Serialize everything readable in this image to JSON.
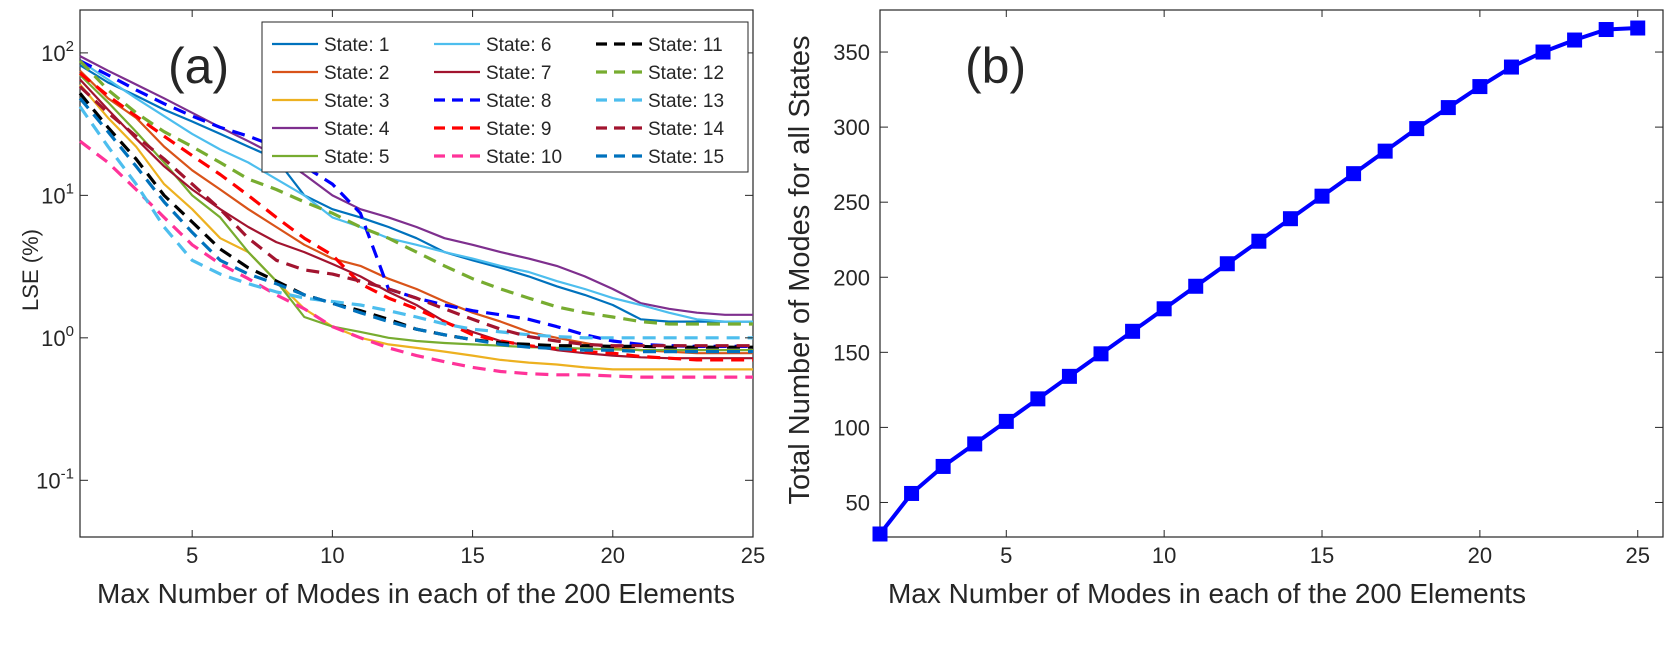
{
  "chart_data": [
    {
      "type": "line",
      "panel_label": "(a)",
      "xlabel": "Max Number of Modes in each of the 200 Elements",
      "ylabel": "LSE (%)",
      "xlim": [
        1,
        25
      ],
      "ylim": [
        0.04,
        200
      ],
      "yscale": "log",
      "xticks": [
        "5",
        "10",
        "15",
        "20",
        "25"
      ],
      "yticks": [
        {
          "base": "10",
          "exp": "-1",
          "value": 0.1
        },
        {
          "base": "10",
          "exp": "0",
          "value": 1
        },
        {
          "base": "10",
          "exp": "1",
          "value": 10
        },
        {
          "base": "10",
          "exp": "2",
          "value": 100
        }
      ],
      "grid": false,
      "legend_position": "top-right",
      "x": [
        1,
        2,
        3,
        4,
        5,
        6,
        7,
        8,
        9,
        10,
        11,
        12,
        13,
        14,
        15,
        16,
        17,
        18,
        19,
        20,
        21,
        22,
        23,
        24,
        25
      ],
      "series": [
        {
          "name": "State: 1",
          "color": "#0072BD",
          "dash": "solid",
          "values": [
            82,
            62,
            50,
            40,
            33,
            27,
            22,
            18,
            10,
            8,
            7,
            6,
            5,
            4,
            3.5,
            3.1,
            2.7,
            2.3,
            2.0,
            1.7,
            1.35,
            1.3,
            1.3,
            1.3,
            1.3
          ]
        },
        {
          "name": "State: 2",
          "color": "#D95319",
          "dash": "solid",
          "values": [
            75,
            48,
            35,
            22,
            15,
            11,
            8,
            6,
            4.5,
            3.6,
            3.2,
            2.6,
            2.2,
            1.8,
            1.5,
            1.3,
            1.1,
            1.0,
            0.92,
            0.85,
            0.82,
            0.8,
            0.78,
            0.78,
            0.78
          ]
        },
        {
          "name": "State: 3",
          "color": "#EDB120",
          "dash": "solid",
          "values": [
            60,
            35,
            22,
            12,
            8,
            5,
            4,
            2.5,
            1.6,
            1.2,
            1.0,
            0.9,
            0.85,
            0.8,
            0.75,
            0.7,
            0.67,
            0.65,
            0.62,
            0.6,
            0.6,
            0.6,
            0.6,
            0.6,
            0.6
          ]
        },
        {
          "name": "State: 4",
          "color": "#7E2F8E",
          "dash": "solid",
          "values": [
            95,
            75,
            60,
            48,
            38,
            30,
            24,
            19,
            14,
            10,
            8,
            7,
            6,
            5,
            4.5,
            4,
            3.6,
            3.2,
            2.7,
            2.2,
            1.75,
            1.6,
            1.5,
            1.45,
            1.45
          ]
        },
        {
          "name": "State: 5",
          "color": "#77AC30",
          "dash": "solid",
          "values": [
            70,
            45,
            28,
            17,
            10,
            7,
            4,
            2.5,
            1.4,
            1.2,
            1.1,
            1.0,
            0.95,
            0.92,
            0.9,
            0.88,
            0.86,
            0.85,
            0.84,
            0.83,
            0.82,
            0.82,
            0.82,
            0.82,
            0.82
          ]
        },
        {
          "name": "State: 6",
          "color": "#4DBEEE",
          "dash": "solid",
          "values": [
            88,
            65,
            48,
            36,
            27,
            21,
            17,
            13,
            10,
            7,
            6,
            5,
            4.5,
            4,
            3.6,
            3.2,
            2.9,
            2.5,
            2.2,
            1.9,
            1.7,
            1.5,
            1.35,
            1.3,
            1.3
          ]
        },
        {
          "name": "State: 7",
          "color": "#A2142F",
          "dash": "solid",
          "values": [
            65,
            40,
            25,
            16,
            11,
            8,
            6,
            4.7,
            4,
            3.3,
            2.7,
            2.1,
            1.7,
            1.3,
            1.1,
            0.95,
            0.88,
            0.82,
            0.78,
            0.75,
            0.73,
            0.72,
            0.72,
            0.72,
            0.72
          ]
        },
        {
          "name": "State: 8",
          "color": "#0000FF",
          "dash": "dashed",
          "values": [
            88,
            70,
            55,
            44,
            36,
            30,
            26,
            22,
            16,
            12,
            7.5,
            2.2,
            1.9,
            1.7,
            1.55,
            1.45,
            1.35,
            1.2,
            1.05,
            0.95,
            0.9,
            0.88,
            0.87,
            0.87,
            0.87
          ]
        },
        {
          "name": "State: 9",
          "color": "#FF0000",
          "dash": "dashed",
          "values": [
            72,
            50,
            36,
            26,
            19,
            14,
            10,
            7,
            5,
            3.8,
            2.4,
            1.9,
            1.6,
            1.3,
            1.05,
            0.95,
            0.88,
            0.84,
            0.8,
            0.78,
            0.74,
            0.72,
            0.7,
            0.7,
            0.7
          ]
        },
        {
          "name": "State: 10",
          "color": "#FF3399",
          "dash": "dashed",
          "values": [
            24,
            17,
            11,
            7,
            4.5,
            3.3,
            2.6,
            2.0,
            1.6,
            1.2,
            1.0,
            0.85,
            0.75,
            0.68,
            0.62,
            0.58,
            0.56,
            0.55,
            0.55,
            0.54,
            0.53,
            0.53,
            0.53,
            0.53,
            0.53
          ]
        },
        {
          "name": "State: 11",
          "color": "#000000",
          "dash": "dashed",
          "values": [
            52,
            30,
            18,
            10,
            6.5,
            4.2,
            3.1,
            2.5,
            2.0,
            1.75,
            1.55,
            1.35,
            1.15,
            1.05,
            0.97,
            0.92,
            0.9,
            0.88,
            0.88,
            0.87,
            0.87,
            0.86,
            0.86,
            0.86,
            0.86
          ]
        },
        {
          "name": "State: 12",
          "color": "#77AC30",
          "dash": "dashed",
          "values": [
            88,
            55,
            38,
            28,
            22,
            17,
            13,
            11,
            9,
            7.5,
            6,
            5,
            4,
            3.2,
            2.6,
            2.2,
            1.9,
            1.65,
            1.5,
            1.4,
            1.3,
            1.25,
            1.25,
            1.25,
            1.25
          ]
        },
        {
          "name": "State: 13",
          "color": "#4DBEEE",
          "dash": "dashed",
          "values": [
            42,
            22,
            12,
            6,
            3.5,
            2.8,
            2.4,
            2.1,
            1.9,
            1.8,
            1.7,
            1.55,
            1.4,
            1.25,
            1.15,
            1.1,
            1.05,
            1.02,
            1.0,
            1.0,
            1.0,
            1.0,
            1.0,
            1.0,
            1.0
          ]
        },
        {
          "name": "State: 14",
          "color": "#A2142F",
          "dash": "dashed",
          "values": [
            58,
            38,
            26,
            18,
            12,
            8,
            5,
            3.5,
            3.0,
            2.8,
            2.5,
            2.2,
            1.9,
            1.6,
            1.35,
            1.15,
            1.02,
            0.95,
            0.9,
            0.88,
            0.88,
            0.88,
            0.88,
            0.88,
            0.88
          ]
        },
        {
          "name": "State: 15",
          "color": "#0072BD",
          "dash": "dashed",
          "values": [
            48,
            28,
            16,
            9,
            5.5,
            3.5,
            2.8,
            2.4,
            2.0,
            1.75,
            1.5,
            1.3,
            1.15,
            1.05,
            0.97,
            0.9,
            0.86,
            0.84,
            0.82,
            0.82,
            0.8,
            0.8,
            0.8,
            0.8,
            0.8
          ]
        }
      ]
    },
    {
      "type": "line",
      "panel_label": "(b)",
      "xlabel": "Max Number of Modes in each of the 200 Elements",
      "ylabel": "Total Number of Modes for all States",
      "xlim": [
        1,
        25.8
      ],
      "ylim": [
        27,
        378
      ],
      "xticks": [
        "5",
        "10",
        "15",
        "20",
        "25"
      ],
      "yticks": [
        "50",
        "100",
        "150",
        "200",
        "250",
        "300",
        "350"
      ],
      "grid": false,
      "marker": "square",
      "color": "#0000FF",
      "x": [
        1,
        2,
        3,
        4,
        5,
        6,
        7,
        8,
        9,
        10,
        11,
        12,
        13,
        14,
        15,
        16,
        17,
        18,
        19,
        20,
        21,
        22,
        23,
        24,
        25
      ],
      "series": [
        {
          "values": [
            29,
            56,
            74,
            89,
            104,
            119,
            134,
            149,
            164,
            179,
            194,
            209,
            224,
            239,
            254,
            269,
            284,
            299,
            313,
            327,
            340,
            350,
            358,
            365,
            366
          ]
        }
      ]
    }
  ]
}
